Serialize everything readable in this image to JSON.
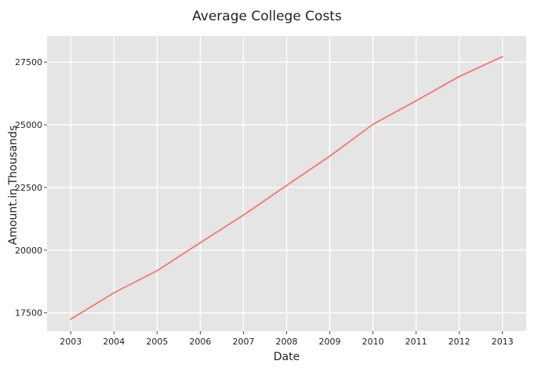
{
  "chart_data": {
    "type": "line",
    "title": "Average College Costs",
    "xlabel": "Date",
    "ylabel": "Amount.in.Thousands",
    "x": [
      2003,
      2004,
      2005,
      2006,
      2007,
      2008,
      2009,
      2010,
      2011,
      2012,
      2013
    ],
    "series": [
      {
        "values": [
          17250,
          18300,
          19180,
          20300,
          21400,
          22580,
          23750,
          25020,
          25960,
          26930,
          27720
        ],
        "color": "#f8766d"
      }
    ],
    "xlim": [
      2002.45,
      2013.55
    ],
    "ylim": [
      16770,
      28540
    ],
    "yticks": [
      17500,
      20000,
      22500,
      25000,
      27500
    ],
    "ytick_labels": [
      "17500",
      "20000",
      "22500",
      "25000",
      "27500"
    ],
    "xtick_labels": [
      "2003",
      "2004",
      "2005",
      "2006",
      "2007",
      "2008",
      "2009",
      "2010",
      "2011",
      "2012",
      "2013"
    ],
    "grid": true,
    "panel_background": "#e5e5e5",
    "grid_color": "#ffffff"
  }
}
